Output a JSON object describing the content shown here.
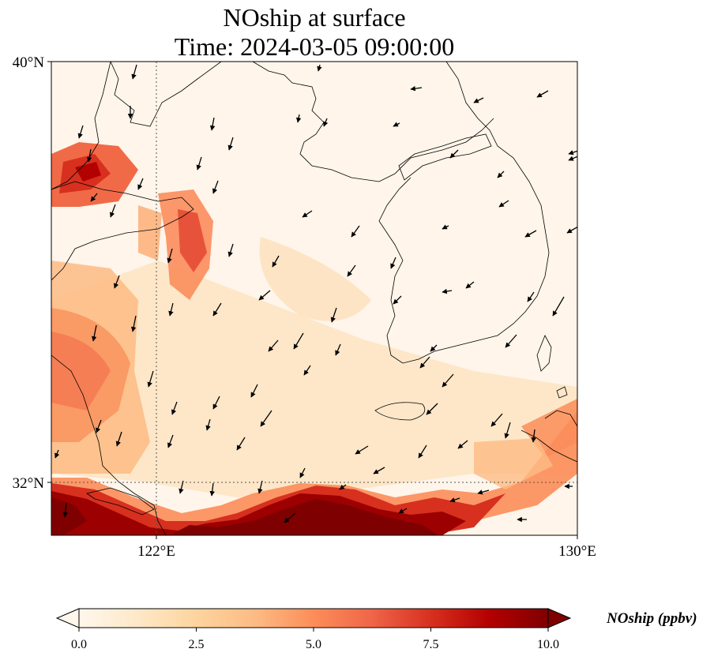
{
  "title": {
    "line1": "NOship at surface",
    "line2": "Time: 2024-03-05 09:00:00"
  },
  "map": {
    "lon_range": [
      120,
      130
    ],
    "lat_range": [
      31,
      40
    ],
    "lat_ticks": [
      "40°N",
      "32°N"
    ],
    "lon_ticks": [
      "122°E",
      "130°E"
    ],
    "gridlines": {
      "lon": 122,
      "lat": 32,
      "style": "dotted"
    }
  },
  "colorbar": {
    "label": "NOship (ppbv)",
    "min": 0.0,
    "max": 10.0,
    "ticks": [
      "0.0",
      "2.5",
      "5.0",
      "7.5",
      "10.0"
    ],
    "colormap": "OrRd",
    "extend": "both",
    "colors": [
      "#fff7ec",
      "#fee8c8",
      "#fdd49e",
      "#fdbb84",
      "#fc8d59",
      "#ef6548",
      "#d7301f",
      "#b30000",
      "#7f0000"
    ]
  }
}
